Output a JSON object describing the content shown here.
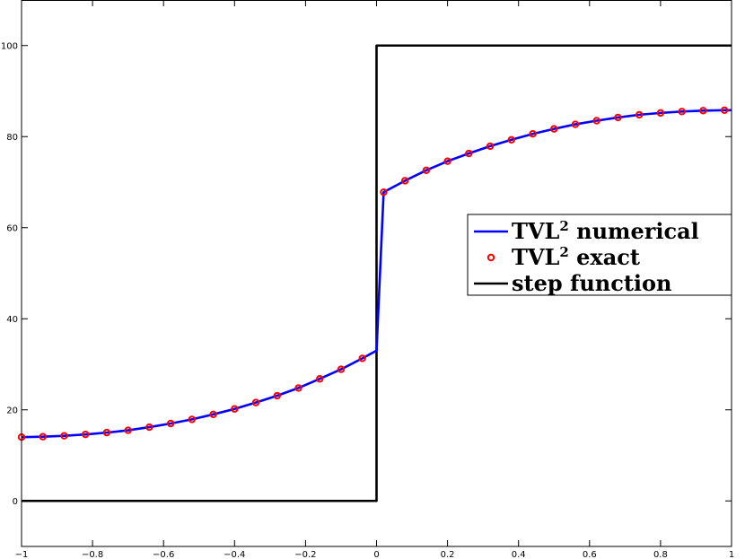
{
  "chart_data": {
    "type": "line",
    "title": "",
    "xlabel": "",
    "ylabel": "",
    "xlim": [
      -1,
      1
    ],
    "ylim": [
      -10,
      110
    ],
    "grid": false,
    "legend_position": "center-right",
    "x_ticks": [
      -1,
      -0.8,
      -0.6,
      -0.4,
      -0.2,
      0,
      0.2,
      0.4,
      0.6,
      0.8,
      1
    ],
    "x_tick_labels": [
      "−1",
      "−0.8",
      "−0.6",
      "−0.4",
      "−0.2",
      "0",
      "0.2",
      "0.4",
      "0.6",
      "0.8",
      "1"
    ],
    "y_ticks": [
      0,
      20,
      40,
      60,
      80,
      100
    ],
    "y_tick_labels": [
      "0",
      "20",
      "40",
      "60",
      "80",
      "100"
    ],
    "series": [
      {
        "name": "TVL",
        "name_superscript": "2",
        "name_suffix": " numerical",
        "style": "line",
        "color": "#0000ff",
        "x": [
          -1,
          -0.94,
          -0.88,
          -0.82,
          -0.76,
          -0.7,
          -0.64,
          -0.58,
          -0.52,
          -0.46,
          -0.4,
          -0.34,
          -0.28,
          -0.22,
          -0.16,
          -0.1,
          -0.04,
          0,
          0.02,
          0.08,
          0.14,
          0.2,
          0.26,
          0.32,
          0.38,
          0.44,
          0.5,
          0.56,
          0.62,
          0.68,
          0.74,
          0.8,
          0.86,
          0.92,
          0.98,
          1
        ],
        "y": [
          14.0,
          14.1,
          14.3,
          14.6,
          15.0,
          15.5,
          16.2,
          17.0,
          17.9,
          19.0,
          20.2,
          21.6,
          23.1,
          24.8,
          26.8,
          28.9,
          31.3,
          33.0,
          67.8,
          70.3,
          72.6,
          74.6,
          76.3,
          77.9,
          79.3,
          80.6,
          81.7,
          82.7,
          83.5,
          84.2,
          84.8,
          85.2,
          85.5,
          85.7,
          85.8,
          85.8
        ]
      },
      {
        "name": "TVL",
        "name_superscript": "2",
        "name_suffix": " exact",
        "style": "markers",
        "color": "#ff0000",
        "x": [
          -1,
          -0.94,
          -0.88,
          -0.82,
          -0.76,
          -0.7,
          -0.64,
          -0.58,
          -0.52,
          -0.46,
          -0.4,
          -0.34,
          -0.28,
          -0.22,
          -0.16,
          -0.1,
          -0.04,
          0.02,
          0.08,
          0.14,
          0.2,
          0.26,
          0.32,
          0.38,
          0.44,
          0.5,
          0.56,
          0.62,
          0.68,
          0.74,
          0.8,
          0.86,
          0.92,
          0.98
        ],
        "y": [
          14.0,
          14.1,
          14.3,
          14.6,
          15.0,
          15.5,
          16.2,
          17.0,
          17.9,
          19.0,
          20.2,
          21.6,
          23.1,
          24.8,
          26.8,
          28.9,
          31.3,
          67.8,
          70.3,
          72.6,
          74.6,
          76.3,
          77.9,
          79.3,
          80.6,
          81.7,
          82.7,
          83.5,
          84.2,
          84.8,
          85.2,
          85.5,
          85.7,
          85.8
        ]
      },
      {
        "name": "step function",
        "name_superscript": "",
        "name_suffix": "",
        "style": "line",
        "color": "#000000",
        "x": [
          -1,
          0,
          0,
          1
        ],
        "y": [
          0,
          0,
          100,
          100
        ]
      }
    ]
  }
}
